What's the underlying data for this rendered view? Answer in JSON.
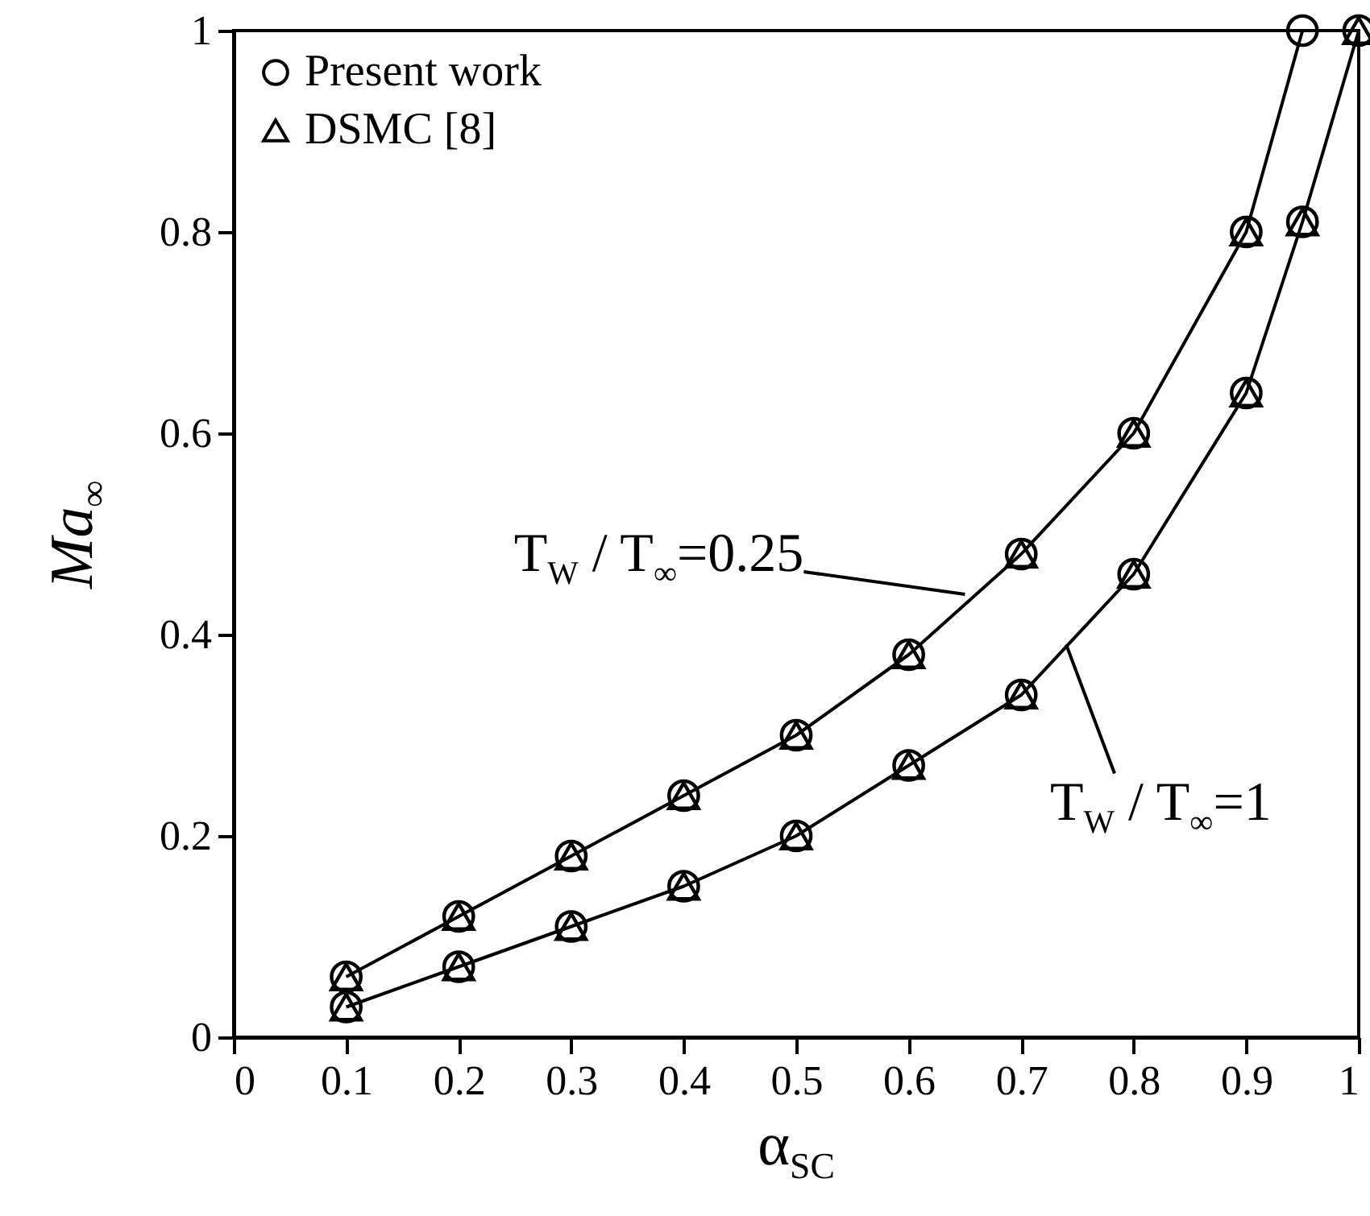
{
  "chart_data": {
    "type": "line",
    "xlabel": "α$_{SC}$",
    "ylabel": "Ma$_{∞}$",
    "xlim": [
      0,
      1
    ],
    "ylim": [
      0,
      1
    ],
    "xticks": [
      0,
      0.1,
      0.2,
      0.3,
      0.4,
      0.5,
      0.6,
      0.7,
      0.8,
      0.9,
      1
    ],
    "yticks": [
      0,
      0.2,
      0.4,
      0.6,
      0.8,
      1
    ],
    "legend": "top left",
    "annotations": [
      {
        "text": "T$_{W}$ / T$_{∞}$=0.25",
        "x": 0.65,
        "y": 0.44
      },
      {
        "text": "T$_{W}$ / T$_{∞}$=1",
        "x": 0.74,
        "y": 0.39
      }
    ],
    "series": [
      {
        "color": "#000000",
        "line_style": "solid",
        "x": [
          0.1,
          0.2,
          0.3,
          0.4,
          0.5,
          0.6,
          0.7,
          0.8,
          0.9,
          0.95
        ],
        "values": [
          0.06,
          0.12,
          0.18,
          0.24,
          0.3,
          0.38,
          0.48,
          0.6,
          0.8,
          1
        ]
      },
      {
        "color": "#000000",
        "line_style": "solid",
        "x": [
          0.1,
          0.2,
          0.3,
          0.4,
          0.5,
          0.6,
          0.7,
          0.8,
          0.9,
          0.95,
          1
        ],
        "values": [
          0.03,
          0.07,
          0.11,
          0.15,
          0.2,
          0.27,
          0.34,
          0.46,
          0.64,
          0.81,
          1
        ]
      },
      {
        "type": "scatter",
        "name": "Present work",
        "color": "#000000",
        "marker": "circle",
        "x": [
          0.1,
          0.2,
          0.3,
          0.4,
          0.5,
          0.6,
          0.7,
          0.8,
          0.9,
          0.95,
          0.1,
          0.2,
          0.3,
          0.4,
          0.5,
          0.6,
          0.7,
          0.8,
          0.9,
          0.95,
          1
        ],
        "values": [
          0.06,
          0.12,
          0.18,
          0.24,
          0.3,
          0.38,
          0.48,
          0.6,
          0.8,
          1,
          0.03,
          0.07,
          0.11,
          0.15,
          0.2,
          0.27,
          0.34,
          0.46,
          0.64,
          0.81,
          1
        ]
      },
      {
        "type": "scatter",
        "name": "DSMC [8]",
        "color": "#000000",
        "marker": "triangle",
        "x": [
          0.1,
          0.2,
          0.3,
          0.4,
          0.5,
          0.6,
          0.7,
          0.8,
          0.9,
          0.1,
          0.2,
          0.3,
          0.4,
          0.5,
          0.6,
          0.7,
          0.8,
          0.9,
          0.95,
          1
        ],
        "values": [
          0.06,
          0.12,
          0.18,
          0.24,
          0.3,
          0.38,
          0.48,
          0.6,
          0.8,
          0.03,
          0.07,
          0.11,
          0.15,
          0.2,
          0.27,
          0.34,
          0.46,
          0.64,
          0.81,
          1
        ]
      }
    ]
  }
}
